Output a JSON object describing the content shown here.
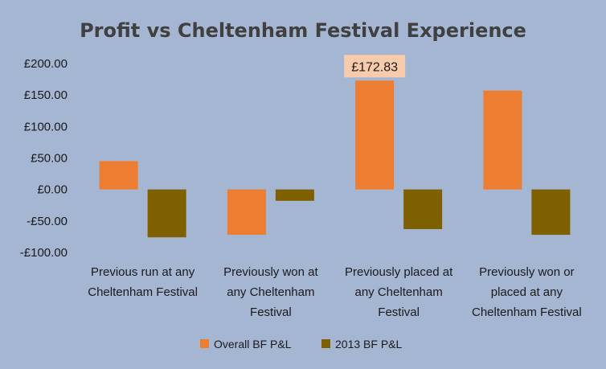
{
  "chart_data": {
    "type": "bar",
    "title": "Profit vs  Cheltenham Festival Experience",
    "xlabel": "",
    "ylabel": "",
    "ylim": [
      -100,
      200
    ],
    "yticks": [
      200,
      150,
      100,
      50,
      0,
      -50,
      -100
    ],
    "ytick_labels": [
      "£200.00",
      "£150.00",
      "£100.00",
      "£50.00",
      "£0.00",
      "-£50.00",
      "-£100.00"
    ],
    "grid": false,
    "legend_position": "bottom",
    "categories": [
      [
        "Previous run at any",
        "Cheltenham Festival"
      ],
      [
        "Previously won at",
        "any Cheltenham",
        "Festival"
      ],
      [
        "Previously placed at",
        "any Cheltenham",
        "Festival"
      ],
      [
        "Previously won or",
        "placed at any",
        "Cheltenham Festival"
      ]
    ],
    "series": [
      {
        "name": "Overall BF P&L",
        "color": "#ed7d31",
        "values": [
          45,
          -72,
          172.83,
          157
        ]
      },
      {
        "name": "2013 BF P&L",
        "color": "#7f6000",
        "values": [
          -76,
          -18,
          -63,
          -72
        ]
      }
    ],
    "data_labels": [
      {
        "series": 0,
        "category": 2,
        "text": "£172.83",
        "bg": "#f8cbad"
      }
    ]
  }
}
